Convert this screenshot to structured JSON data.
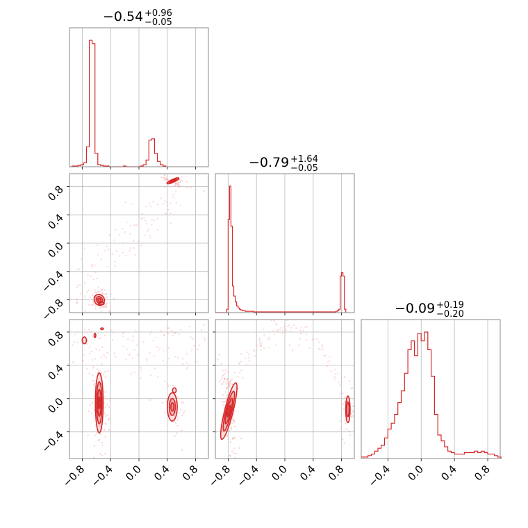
{
  "chart_data": {
    "type": "corner",
    "color": "#d62728",
    "point_color": "#f4b6b6",
    "grid": true,
    "params": [
      {
        "range": [
          -0.98,
          0.98
        ],
        "ticks": [
          -0.8,
          -0.4,
          0.0,
          0.4,
          0.8
        ],
        "tick_labels": [
          "−0.8",
          "−0.4",
          "0.0",
          "0.4",
          "0.8"
        ]
      },
      {
        "range": [
          -0.98,
          0.98
        ],
        "ticks": [
          -0.8,
          -0.4,
          0.0,
          0.4,
          0.8
        ],
        "tick_labels": [
          "−0.8",
          "−0.4",
          "0.0",
          "0.4",
          "0.8"
        ]
      },
      {
        "range": [
          -0.72,
          0.95
        ],
        "ticks": [
          -0.4,
          0.0,
          0.4,
          0.8
        ],
        "tick_labels": [
          "−0.4",
          "0.0",
          "0.4",
          "0.8"
        ]
      }
    ],
    "titles": [
      {
        "median": "−0.54",
        "plus": "+0.96",
        "minus": "−0.05"
      },
      {
        "median": "−0.79",
        "plus": "+1.64",
        "minus": "−0.05"
      },
      {
        "median": "−0.09",
        "plus": "+0.19",
        "minus": "−0.20"
      }
    ],
    "histograms": [
      {
        "x0": -0.98,
        "dx": 0.04,
        "counts": [
          0,
          1,
          1,
          2,
          3,
          6,
          30,
          190,
          185,
          20,
          3,
          2,
          1,
          1,
          0,
          0,
          0,
          0,
          0,
          1,
          0,
          0,
          0,
          0,
          0,
          1,
          3,
          10,
          40,
          42,
          20,
          8,
          3,
          1
        ]
      },
      {
        "x0": -0.98,
        "dx": 0.02,
        "counts": [
          0,
          0,
          0,
          0,
          0,
          0,
          0,
          0,
          5,
          140,
          190,
          130,
          40,
          25,
          16,
          10,
          7,
          5,
          4,
          3,
          3,
          2,
          2,
          2,
          2,
          2,
          2,
          1,
          1,
          1,
          1,
          1,
          1,
          1,
          1,
          1,
          1,
          1,
          1,
          1,
          1,
          1,
          1,
          1,
          1,
          1,
          1,
          1,
          1,
          1,
          1,
          1,
          1,
          1,
          1,
          1,
          1,
          1,
          1,
          1,
          1,
          1,
          1,
          1,
          1,
          1,
          1,
          1,
          1,
          1,
          1,
          1,
          1,
          1,
          1,
          1,
          1,
          1,
          1,
          1,
          1,
          1,
          1,
          1,
          1,
          2,
          3,
          5,
          55,
          60,
          55,
          5
        ]
      },
      {
        "x0": -0.72,
        "dx": 0.04,
        "counts": [
          1,
          1,
          2,
          3,
          5,
          7,
          9,
          14,
          20,
          24,
          30,
          38,
          46,
          58,
          74,
          80,
          70,
          85,
          80,
          86,
          74,
          56,
          30,
          16,
          12,
          8,
          5,
          4,
          3,
          3,
          3,
          4,
          4,
          4,
          5,
          4,
          5,
          4,
          3,
          3,
          2,
          1
        ]
      }
    ]
  }
}
